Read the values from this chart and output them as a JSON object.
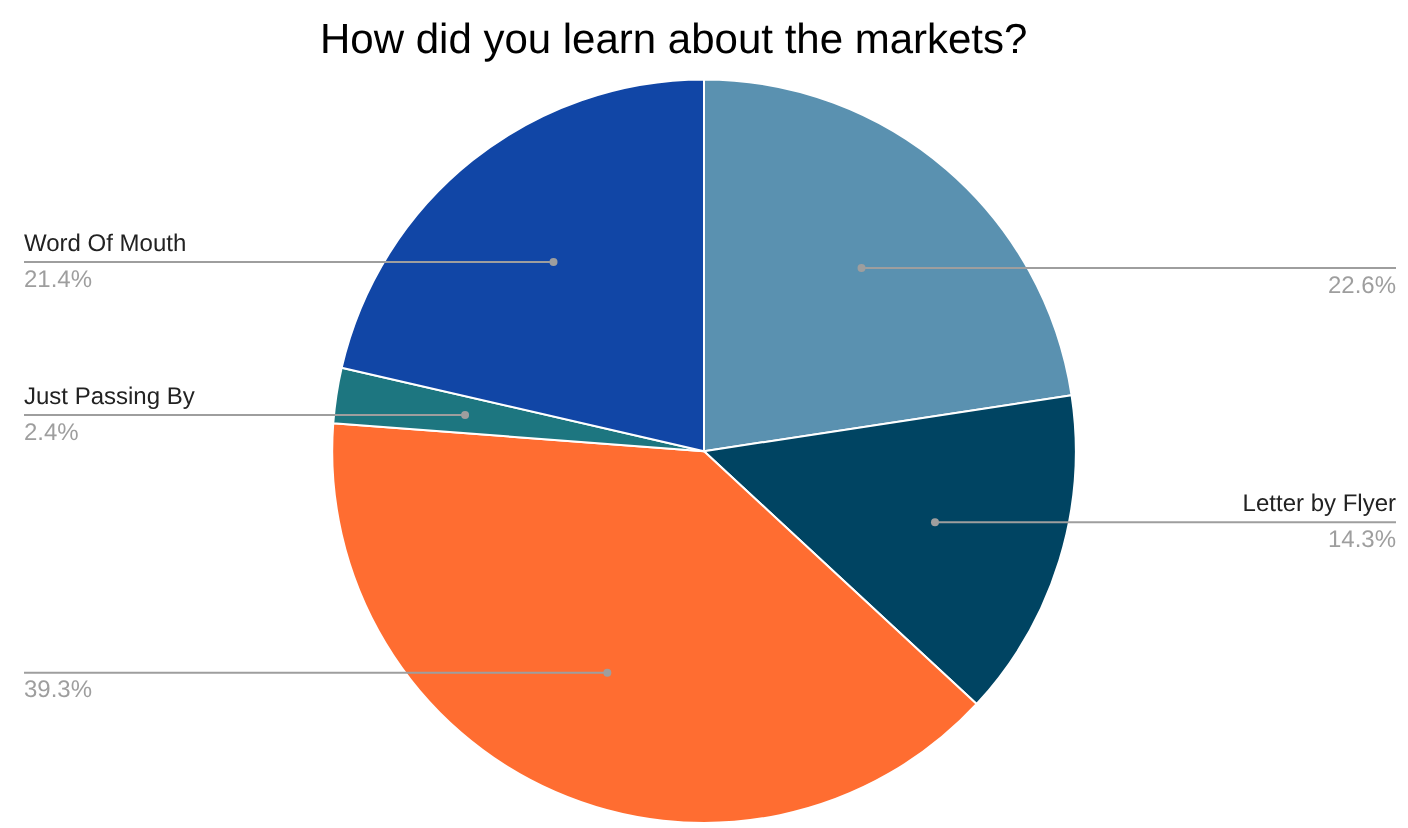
{
  "chart_data": {
    "type": "pie",
    "title": "How did you learn about the markets?",
    "categories": [
      null,
      "Letter by Flyer",
      null,
      "Just Passing By",
      "Word Of Mouth"
    ],
    "values": [
      22.6,
      14.3,
      39.3,
      2.4,
      21.4
    ],
    "colors": [
      "#5a91b0",
      "#004462",
      "#ff6d31",
      "#1d7680",
      "#1146a6"
    ],
    "value_labels": [
      "22.6%",
      "14.3%",
      "39.3%",
      "2.4%",
      "21.4%"
    ],
    "legend": false
  }
}
